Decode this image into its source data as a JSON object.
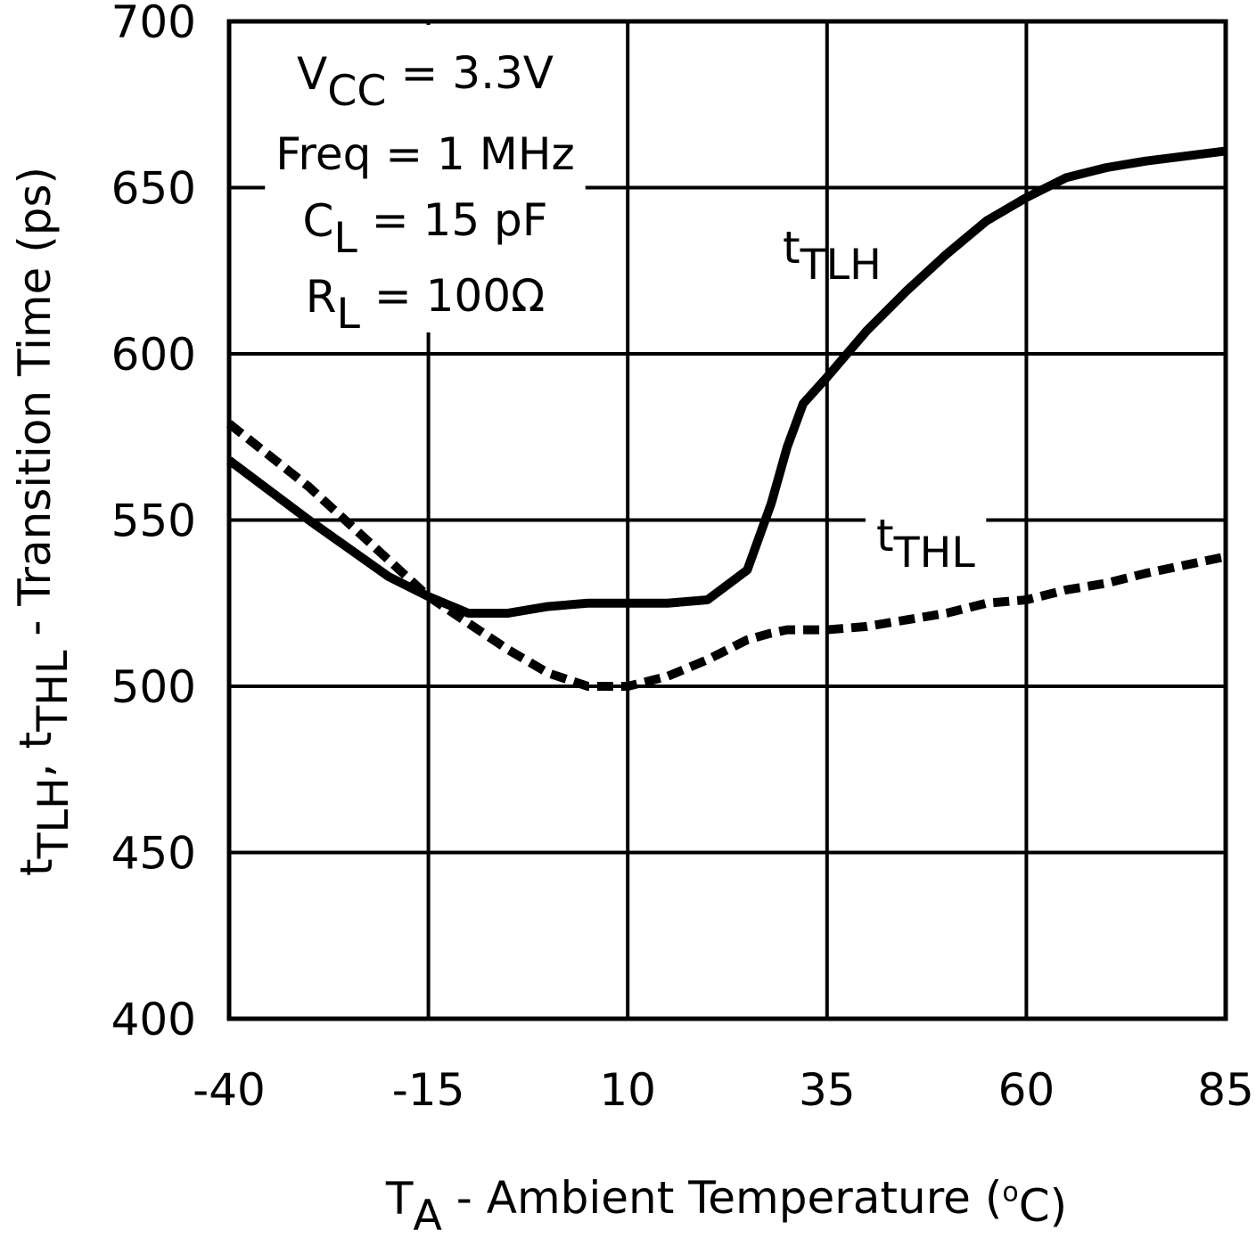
{
  "chart_data": {
    "type": "line",
    "x_label": [
      {
        "t": "T"
      },
      {
        "s": "A"
      },
      {
        "t": " - Ambient Temperature ("
      },
      {
        "sup": "o"
      },
      {
        "t": "C)"
      }
    ],
    "y_label": [
      {
        "t": "t"
      },
      {
        "s": "TLH"
      },
      {
        "t": ", t"
      },
      {
        "s": "THL"
      },
      {
        "t": " - Transition Time (ps)"
      }
    ],
    "annotation": [
      [
        {
          "t": "V"
        },
        {
          "s": "CC"
        },
        {
          "t": " = 3.3V"
        }
      ],
      [
        {
          "t": "Freq = 1 MHz"
        }
      ],
      [
        {
          "t": "C"
        },
        {
          "s": "L"
        },
        {
          "t": " = 15 pF"
        }
      ],
      [
        {
          "t": "R"
        },
        {
          "s": "L"
        },
        {
          "t": " = 100Ω"
        }
      ]
    ],
    "x": [
      -40,
      -30,
      -20,
      -15,
      -10,
      -5,
      0,
      5,
      10,
      15,
      20,
      25,
      28,
      30,
      32,
      35,
      40,
      45,
      50,
      55,
      60,
      65,
      70,
      75,
      85
    ],
    "series": [
      {
        "label": [
          {
            "t": "t"
          },
          {
            "s": "TLH"
          }
        ],
        "color": "#000000",
        "dash": false,
        "values": [
          568,
          550,
          533,
          527,
          522,
          522,
          524,
          525,
          525,
          525,
          526,
          535,
          555,
          572,
          585,
          593,
          607,
          619,
          630,
          640,
          647,
          653,
          656,
          658,
          661
        ]
      },
      {
        "label": [
          {
            "t": "t"
          },
          {
            "s": "THL"
          }
        ],
        "color": "#000000",
        "dash": true,
        "values": [
          579,
          560,
          538,
          527,
          519,
          511,
          504,
          500,
          500,
          503,
          508,
          514,
          516,
          517,
          517,
          517,
          518,
          520,
          522,
          525,
          526,
          529,
          531,
          534,
          539
        ]
      }
    ],
    "xlim": [
      -40,
      85
    ],
    "xticks": [
      -40,
      -15,
      10,
      35,
      60,
      85
    ],
    "ylim": [
      400,
      700
    ],
    "yticks": [
      400,
      450,
      500,
      550,
      600,
      650,
      700
    ],
    "grid": true
  }
}
